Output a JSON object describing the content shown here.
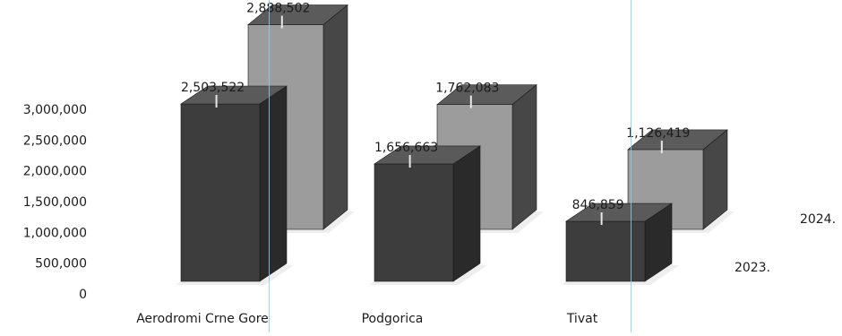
{
  "chart_data": {
    "type": "bar",
    "categories": [
      "Aerodromi Crne Gore",
      "Podgorica",
      "Tivat"
    ],
    "series": [
      {
        "name": "2023.",
        "values": [
          2503522,
          1656663,
          846859
        ]
      },
      {
        "name": "2024.",
        "values": [
          2888502,
          1762083,
          1126419
        ]
      }
    ],
    "data_labels": {
      "2023.": [
        "2,503,522",
        "1,656,663",
        "846,859"
      ],
      "2024.": [
        "2,888,502",
        "1,762,083",
        "1,126,419"
      ]
    },
    "yticks": [
      "3,000,000",
      "2,500,000",
      "2,000,000",
      "1,500,000",
      "1,000,000",
      "500,000",
      "0"
    ],
    "ytick_values": [
      3000000,
      2500000,
      2000000,
      1500000,
      1000000,
      500000,
      0
    ],
    "ylim": [
      0,
      3000000
    ],
    "title": "",
    "xlabel": "",
    "ylabel": "",
    "style": "3d-clustered-column",
    "colors": {
      "series_2023_front": "#3d3d3d",
      "series_2023_top": "#5a5a5a",
      "series_2023_side": "#2a2a2a",
      "series_2024_front": "#9c9c9c",
      "series_2024_top": "#5b5b5b",
      "series_2024_side": "#474747",
      "text": "#1c1c1c",
      "scan_line": "#7fd2e8"
    }
  }
}
